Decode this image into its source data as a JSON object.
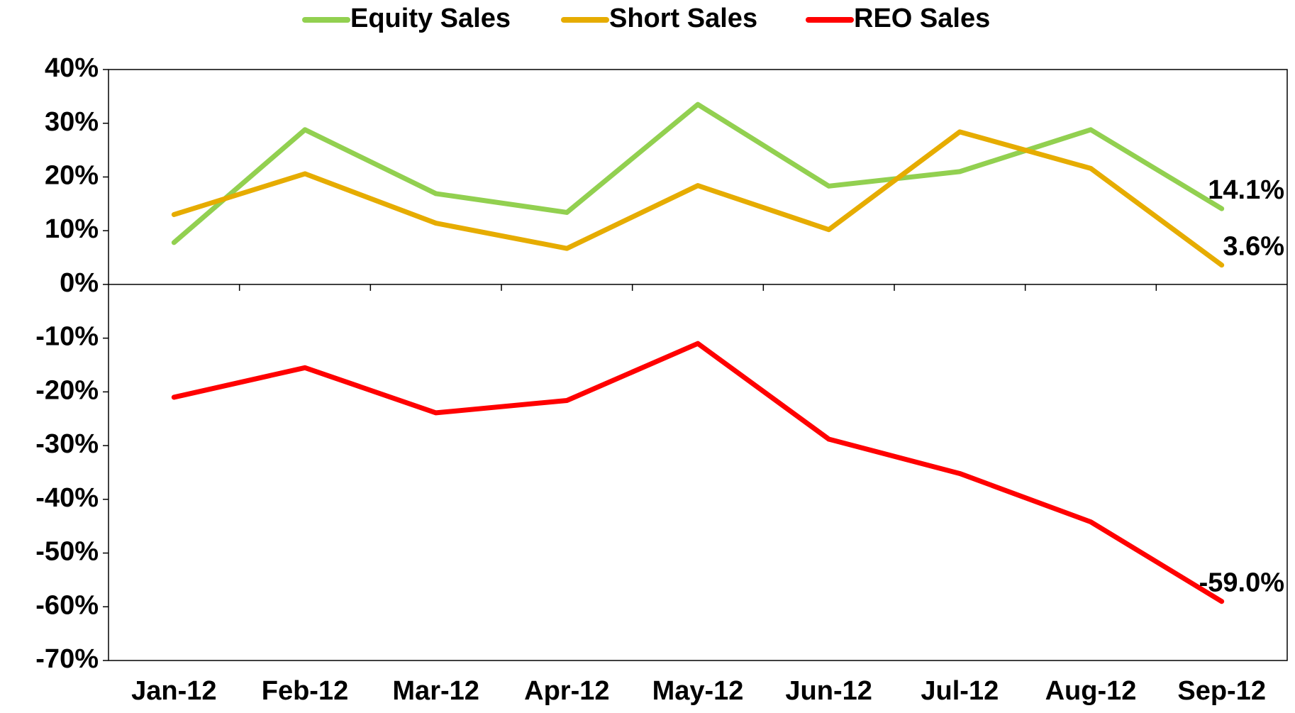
{
  "chart_data": {
    "type": "line",
    "categories": [
      "Jan-12",
      "Feb-12",
      "Mar-12",
      "Apr-12",
      "May-12",
      "Jun-12",
      "Jul-12",
      "Aug-12",
      "Sep-12"
    ],
    "series": [
      {
        "name": "Equity Sales",
        "color": "#92d050",
        "values": [
          7.8,
          28.8,
          16.9,
          13.4,
          33.5,
          18.3,
          21.0,
          28.8,
          14.1
        ],
        "value_labels": [
          null,
          null,
          null,
          null,
          null,
          null,
          null,
          null,
          "14.1%"
        ]
      },
      {
        "name": "Short Sales",
        "color": "#e6ac00",
        "values": [
          13.0,
          20.6,
          11.4,
          6.7,
          18.4,
          10.2,
          28.4,
          21.6,
          3.6
        ],
        "value_labels": [
          null,
          null,
          null,
          null,
          null,
          null,
          null,
          null,
          "3.6%"
        ]
      },
      {
        "name": "REO Sales",
        "color": "#ff0000",
        "values": [
          -21.0,
          -15.5,
          -23.9,
          -21.6,
          -11.0,
          -28.8,
          -35.2,
          -44.2,
          -59.0
        ],
        "value_labels": [
          null,
          null,
          null,
          null,
          null,
          null,
          null,
          null,
          "-59.0%"
        ]
      }
    ],
    "ylim": [
      -70,
      40
    ],
    "yticks": [
      {
        "value": 40,
        "label": "40%"
      },
      {
        "value": 30,
        "label": "30%"
      },
      {
        "value": 20,
        "label": "20%"
      },
      {
        "value": 10,
        "label": "10%"
      },
      {
        "value": 0,
        "label": "0%"
      },
      {
        "value": -10,
        "label": "-10%"
      },
      {
        "value": -20,
        "label": "-20%"
      },
      {
        "value": -30,
        "label": "-30%"
      },
      {
        "value": -40,
        "label": "-40%"
      },
      {
        "value": -50,
        "label": "-50%"
      },
      {
        "value": -60,
        "label": "-60%"
      },
      {
        "value": -70,
        "label": "-70%"
      }
    ],
    "grid": false,
    "legend": "top"
  }
}
